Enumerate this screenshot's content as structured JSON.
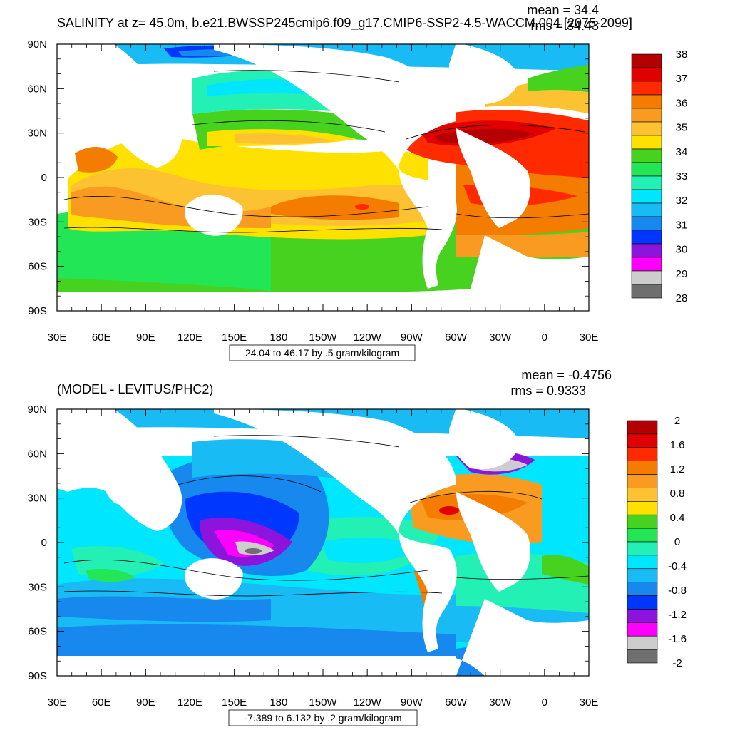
{
  "chart_data": [
    {
      "type": "heatmap",
      "title": "SALINITY at z=  45.0m, b.e21.BWSSP245cmip6.f09_g17.CMIP6-SSP2-4.5-WACCM.004 [2075-2099]",
      "stats": {
        "mean": "mean = 34.4",
        "rms": "rms = 34.43"
      },
      "x_ticks": [
        "30E",
        "60E",
        "90E",
        "120E",
        "150E",
        "180",
        "150W",
        "120W",
        "90W",
        "60W",
        "30W",
        "0",
        "30E"
      ],
      "y_ticks": [
        "90N",
        "60N",
        "30N",
        "0",
        "30S",
        "60S",
        "90S"
      ],
      "contour_info": "24.04 to 46.17 by .5 gram/kilogram",
      "colorbar": {
        "labels": [
          "38",
          "37",
          "36",
          "35",
          "34",
          "33",
          "32",
          "31",
          "30",
          "29",
          "28"
        ],
        "colors": [
          "#b40000",
          "#e00000",
          "#ff2a00",
          "#f47c00",
          "#f99b20",
          "#fdc232",
          "#ffe100",
          "#46d21e",
          "#22e656",
          "#23f0b4",
          "#00e6ff",
          "#19bbf5",
          "#1688ee",
          "#0037ff",
          "#8c14dc",
          "#ff00ff",
          "#cdcdcd",
          "#6f6f6f"
        ]
      }
    },
    {
      "type": "heatmap",
      "title": "(MODEL - LEVITUS/PHC2)",
      "stats": {
        "mean": "mean = -0.4756",
        "rms": "rms = 0.9333"
      },
      "x_ticks": [
        "30E",
        "60E",
        "90E",
        "120E",
        "150E",
        "180",
        "150W",
        "120W",
        "90W",
        "60W",
        "30W",
        "0",
        "30E"
      ],
      "y_ticks": [
        "90N",
        "60N",
        "30N",
        "0",
        "30S",
        "60S",
        "90S"
      ],
      "contour_info": "-7.389 to 6.132 by .2 gram/kilogram",
      "colorbar": {
        "labels": [
          "2",
          "1.6",
          "1.2",
          "0.8",
          "0.4",
          "0",
          "-0.4",
          "-0.8",
          "-1.2",
          "-1.6",
          "-2"
        ],
        "colors": [
          "#b40000",
          "#e00000",
          "#ff2a00",
          "#f47c00",
          "#f99b20",
          "#fdc232",
          "#ffe100",
          "#46d21e",
          "#22e656",
          "#23f0b4",
          "#00e6ff",
          "#19bbf5",
          "#1688ee",
          "#0037ff",
          "#8c14dc",
          "#ff00ff",
          "#cdcdcd",
          "#6f6f6f"
        ]
      }
    }
  ]
}
